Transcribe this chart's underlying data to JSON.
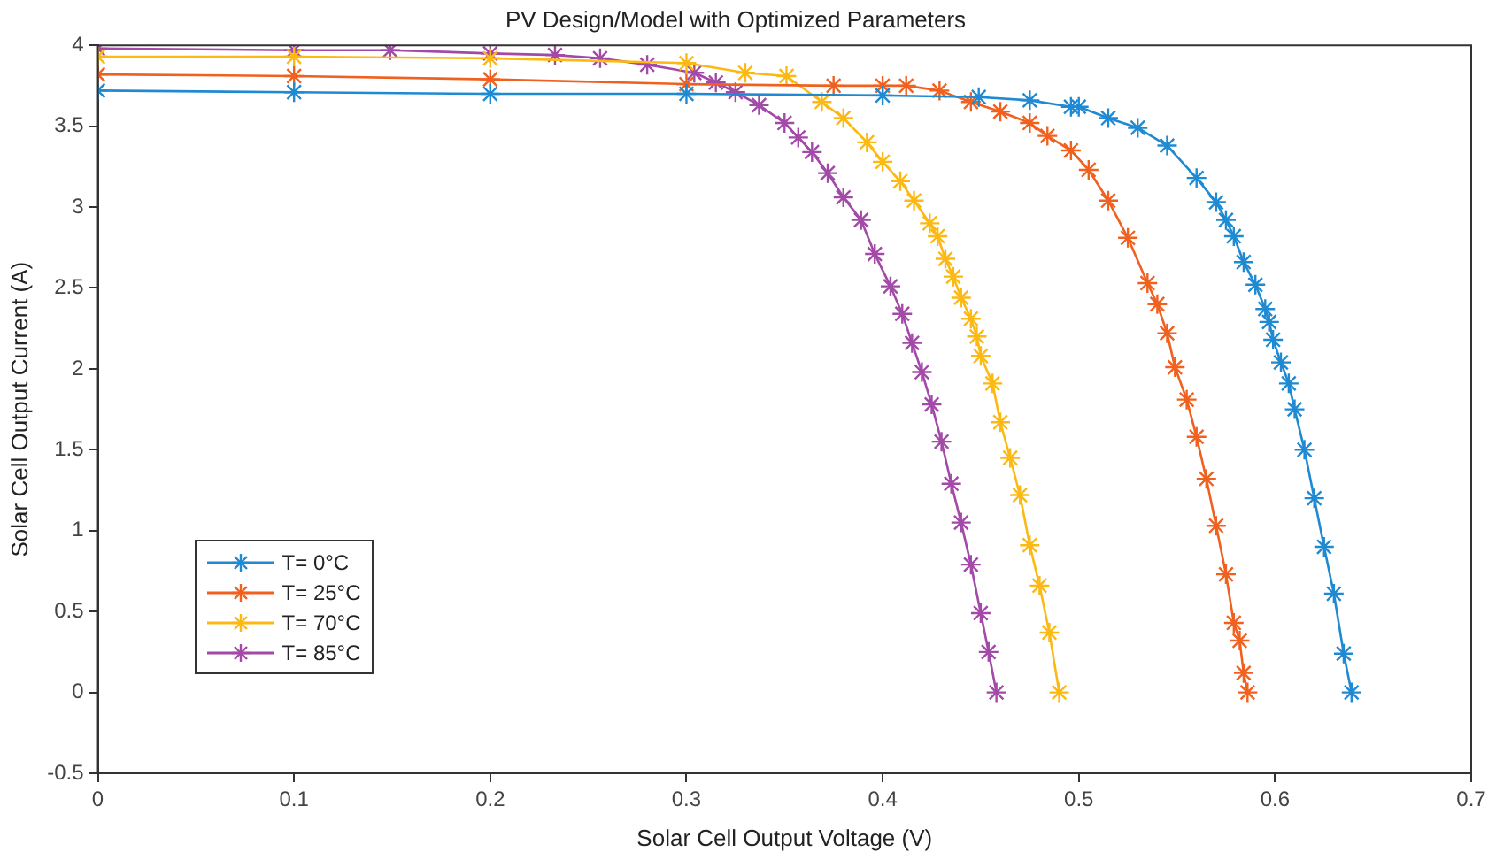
{
  "chart_data": {
    "type": "line",
    "title": "PV Design/Model with Optimized Parameters",
    "xlabel": "Solar Cell Output Voltage (V)",
    "ylabel": "Solar Cell Output Current (A)",
    "xlim": [
      0,
      0.7
    ],
    "xticks": [
      0,
      0.1,
      0.2,
      0.3,
      0.4,
      0.5,
      0.6,
      0.7
    ],
    "ylim": [
      -0.5,
      4
    ],
    "yticks": [
      -0.5,
      0,
      0.5,
      1,
      1.5,
      2,
      2.5,
      3,
      3.5,
      4
    ],
    "grid": false,
    "legend": "bottom left",
    "marker": "cross",
    "line_style": "solid",
    "series": [
      {
        "name": "T= 0°C",
        "color": "#1f8ad2",
        "x": [
          0,
          0.1,
          0.2,
          0.3,
          0.4,
          0.449,
          0.475,
          0.496,
          0.5,
          0.515,
          0.53,
          0.545,
          0.56,
          0.57,
          0.575,
          0.579,
          0.584,
          0.59,
          0.595,
          0.597,
          0.599,
          0.603,
          0.607,
          0.61,
          0.615,
          0.62,
          0.625,
          0.63,
          0.635,
          0.639
        ],
        "values": [
          3.72,
          3.71,
          3.7,
          3.7,
          3.69,
          3.68,
          3.66,
          3.62,
          3.62,
          3.55,
          3.49,
          3.38,
          3.18,
          3.03,
          2.92,
          2.82,
          2.66,
          2.52,
          2.37,
          2.29,
          2.18,
          2.04,
          1.91,
          1.75,
          1.5,
          1.2,
          0.9,
          0.61,
          0.24,
          0
        ]
      },
      {
        "name": "T= 25°C",
        "color": "#f0601e",
        "x": [
          0,
          0.1,
          0.2,
          0.3,
          0.375,
          0.4,
          0.412,
          0.429,
          0.445,
          0.46,
          0.475,
          0.484,
          0.496,
          0.505,
          0.515,
          0.525,
          0.535,
          0.54,
          0.545,
          0.549,
          0.555,
          0.56,
          0.565,
          0.57,
          0.575,
          0.579,
          0.582,
          0.584,
          0.586
        ],
        "values": [
          3.82,
          3.81,
          3.79,
          3.76,
          3.75,
          3.75,
          3.75,
          3.72,
          3.65,
          3.59,
          3.52,
          3.44,
          3.35,
          3.23,
          3.04,
          2.81,
          2.53,
          2.4,
          2.22,
          2.01,
          1.81,
          1.58,
          1.32,
          1.03,
          0.73,
          0.43,
          0.32,
          0.12,
          0
        ]
      },
      {
        "name": "T= 70°C",
        "color": "#fdb913",
        "x": [
          0,
          0.1,
          0.2,
          0.3,
          0.33,
          0.351,
          0.369,
          0.38,
          0.392,
          0.4,
          0.409,
          0.416,
          0.424,
          0.428,
          0.432,
          0.436,
          0.44,
          0.445,
          0.448,
          0.45,
          0.456,
          0.46,
          0.465,
          0.47,
          0.475,
          0.48,
          0.485,
          0.49
        ],
        "values": [
          3.93,
          3.93,
          3.92,
          3.89,
          3.83,
          3.81,
          3.65,
          3.55,
          3.4,
          3.28,
          3.16,
          3.04,
          2.9,
          2.82,
          2.68,
          2.57,
          2.44,
          2.31,
          2.2,
          2.08,
          1.91,
          1.67,
          1.45,
          1.22,
          0.91,
          0.66,
          0.37,
          0
        ]
      },
      {
        "name": "T= 85°C",
        "color": "#a349a8",
        "x": [
          0,
          0.1,
          0.149,
          0.2,
          0.233,
          0.256,
          0.28,
          0.304,
          0.315,
          0.325,
          0.337,
          0.35,
          0.357,
          0.364,
          0.372,
          0.38,
          0.389,
          0.396,
          0.404,
          0.41,
          0.415,
          0.42,
          0.425,
          0.43,
          0.435,
          0.44,
          0.445,
          0.45,
          0.454,
          0.458
        ],
        "values": [
          3.98,
          3.97,
          3.97,
          3.95,
          3.94,
          3.92,
          3.88,
          3.83,
          3.77,
          3.71,
          3.63,
          3.52,
          3.43,
          3.34,
          3.21,
          3.06,
          2.92,
          2.71,
          2.51,
          2.34,
          2.16,
          1.98,
          1.78,
          1.55,
          1.29,
          1.05,
          0.79,
          0.49,
          0.25,
          0
        ]
      }
    ]
  }
}
